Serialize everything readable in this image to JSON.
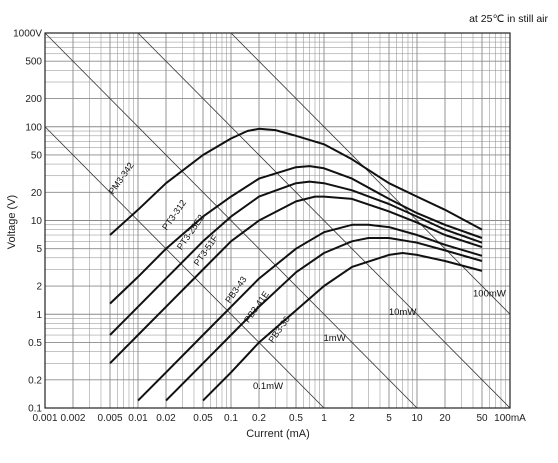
{
  "chart_data": {
    "type": "line",
    "note": "at 25℃ in still air",
    "xlabel": "Current (mA)",
    "ylabel": "Voltage (V)",
    "x_scale": "log",
    "y_scale": "log",
    "xlim": [
      0.001,
      100
    ],
    "ylim": [
      0.1,
      1000
    ],
    "grid": true,
    "x_tick_values": [
      0.001,
      0.002,
      0.005,
      0.01,
      0.02,
      0.05,
      0.1,
      0.2,
      0.5,
      1,
      2,
      5,
      10,
      20,
      50,
      100
    ],
    "x_tick_labels": [
      "0.001",
      "0.002",
      "0.005",
      "0.01",
      "0.02",
      "0.05",
      "0.1",
      "0.2",
      "0.5",
      "1",
      "2",
      "5",
      "10",
      "20",
      "50",
      "100mA"
    ],
    "y_tick_values": [
      0.1,
      0.2,
      0.5,
      1,
      2,
      5,
      10,
      20,
      50,
      100,
      200,
      500,
      1000
    ],
    "y_tick_labels": [
      "0.1",
      "0.2",
      "0.5",
      "1",
      "2",
      "5",
      "10",
      "20",
      "50",
      "100",
      "200",
      "500",
      "1000V"
    ],
    "series": [
      {
        "name": "PM3-342",
        "label_at": [
          0.007,
          27
        ],
        "points": [
          [
            0.005,
            7
          ],
          [
            0.01,
            13
          ],
          [
            0.02,
            25
          ],
          [
            0.05,
            50
          ],
          [
            0.1,
            75
          ],
          [
            0.15,
            90
          ],
          [
            0.2,
            95
          ],
          [
            0.3,
            92
          ],
          [
            0.5,
            80
          ],
          [
            1,
            65
          ],
          [
            2,
            45
          ],
          [
            5,
            25
          ],
          [
            10,
            18
          ],
          [
            20,
            13
          ],
          [
            50,
            8
          ]
        ]
      },
      {
        "name": "PT3-312",
        "label_at": [
          0.026,
          11
        ],
        "points": [
          [
            0.005,
            1.3
          ],
          [
            0.01,
            2.5
          ],
          [
            0.02,
            5
          ],
          [
            0.05,
            11
          ],
          [
            0.1,
            18
          ],
          [
            0.2,
            28
          ],
          [
            0.5,
            37
          ],
          [
            0.7,
            38
          ],
          [
            1,
            36
          ],
          [
            2,
            28
          ],
          [
            5,
            17
          ],
          [
            10,
            12
          ],
          [
            20,
            9
          ],
          [
            50,
            6.5
          ]
        ]
      },
      {
        "name": "PT3-25E2",
        "label_at": [
          0.039,
          7.2
        ],
        "points": [
          [
            0.005,
            0.6
          ],
          [
            0.01,
            1.2
          ],
          [
            0.02,
            2.4
          ],
          [
            0.05,
            6
          ],
          [
            0.1,
            11
          ],
          [
            0.2,
            18
          ],
          [
            0.5,
            25
          ],
          [
            0.7,
            26
          ],
          [
            1,
            25
          ],
          [
            2,
            21
          ],
          [
            5,
            15
          ],
          [
            10,
            11
          ],
          [
            20,
            8
          ],
          [
            50,
            5.8
          ]
        ]
      },
      {
        "name": "PT3-51F",
        "label_at": [
          0.057,
          4.6
        ],
        "points": [
          [
            0.005,
            0.3
          ],
          [
            0.01,
            0.6
          ],
          [
            0.02,
            1.2
          ],
          [
            0.05,
            3
          ],
          [
            0.1,
            6
          ],
          [
            0.2,
            10
          ],
          [
            0.5,
            16
          ],
          [
            0.8,
            18
          ],
          [
            1,
            18
          ],
          [
            2,
            17
          ],
          [
            5,
            12.5
          ],
          [
            10,
            9.5
          ],
          [
            20,
            7
          ],
          [
            50,
            5.2
          ]
        ]
      },
      {
        "name": "PB3-43",
        "label_at": [
          0.12,
          1.75
        ],
        "points": [
          [
            0.01,
            0.12
          ],
          [
            0.02,
            0.24
          ],
          [
            0.05,
            0.6
          ],
          [
            0.1,
            1.2
          ],
          [
            0.2,
            2.4
          ],
          [
            0.5,
            5
          ],
          [
            1,
            7.5
          ],
          [
            2,
            9
          ],
          [
            3,
            9
          ],
          [
            5,
            8.5
          ],
          [
            10,
            7
          ],
          [
            20,
            5.5
          ],
          [
            50,
            4.2
          ]
        ]
      },
      {
        "name": "PB3-41E",
        "label_at": [
          0.2,
          1.15
        ],
        "points": [
          [
            0.02,
            0.12
          ],
          [
            0.05,
            0.3
          ],
          [
            0.1,
            0.6
          ],
          [
            0.2,
            1.2
          ],
          [
            0.5,
            2.8
          ],
          [
            1,
            4.5
          ],
          [
            2,
            6
          ],
          [
            3,
            6.5
          ],
          [
            5,
            6.5
          ],
          [
            10,
            5.8
          ],
          [
            20,
            4.8
          ],
          [
            50,
            3.7
          ]
        ]
      },
      {
        "name": "PB3-36",
        "label_at": [
          0.35,
          0.66
        ],
        "points": [
          [
            0.05,
            0.12
          ],
          [
            0.1,
            0.24
          ],
          [
            0.2,
            0.5
          ],
          [
            0.5,
            1.1
          ],
          [
            1,
            2
          ],
          [
            2,
            3.2
          ],
          [
            5,
            4.3
          ],
          [
            7,
            4.5
          ],
          [
            10,
            4.3
          ],
          [
            20,
            3.7
          ],
          [
            50,
            2.9
          ]
        ]
      }
    ],
    "power_lines": [
      {
        "name": "100mW",
        "mw": 100,
        "label_at": [
          60,
          1.55
        ]
      },
      {
        "name": "10mW",
        "mw": 10,
        "label_at": [
          7,
          0.98
        ]
      },
      {
        "name": "1mW",
        "mw": 1,
        "label_at": [
          1.3,
          0.52
        ]
      },
      {
        "name": "0.1mW",
        "mw": 0.1,
        "label_at": [
          0.25,
          0.16
        ]
      }
    ],
    "colors": {
      "curve": "#111111",
      "grid": "#8a8a8a",
      "power_line": "#333333"
    }
  }
}
